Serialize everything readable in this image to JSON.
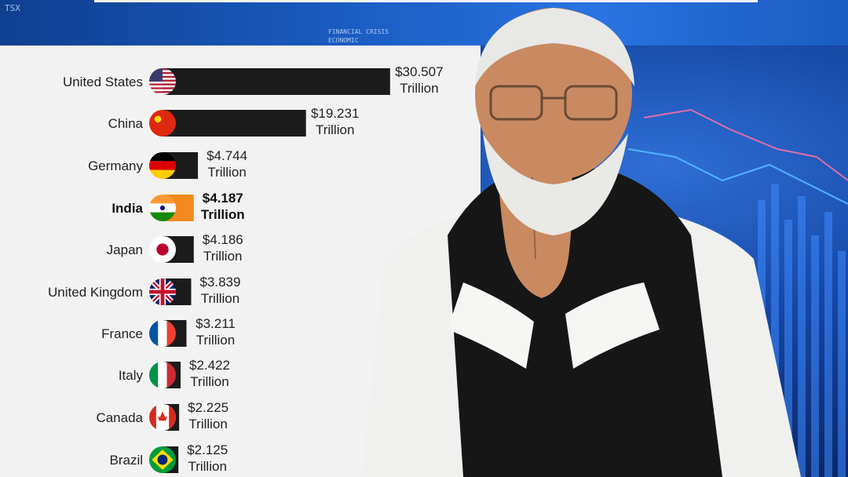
{
  "ticker": {
    "left": "TSX",
    "middle": [
      "FINANCIAL CRISIS",
      "ECONOMIC"
    ]
  },
  "chart_data": {
    "type": "bar",
    "orientation": "horizontal",
    "unit": "Trillion",
    "highlight": "India",
    "highlight_color": "#f28a1e",
    "bar_color": "#1b1b1b",
    "categories": [
      "United States",
      "China",
      "Germany",
      "India",
      "Japan",
      "United Kingdom",
      "France",
      "Italy",
      "Canada",
      "Brazil"
    ],
    "values": [
      30.507,
      19.231,
      4.744,
      4.187,
      4.186,
      3.839,
      3.211,
      2.422,
      2.225,
      2.125
    ],
    "labels": [
      "$30.507",
      "$19.231",
      "$4.744",
      "$4.187",
      "$4.186",
      "$3.839",
      "$3.211",
      "$2.422",
      "$2.225",
      "$2.125"
    ],
    "flag_icons": [
      "us-flag-icon",
      "china-flag-icon",
      "germany-flag-icon",
      "india-flag-icon",
      "japan-flag-icon",
      "uk-flag-icon",
      "france-flag-icon",
      "italy-flag-icon",
      "canada-flag-icon",
      "brazil-flag-icon"
    ]
  }
}
